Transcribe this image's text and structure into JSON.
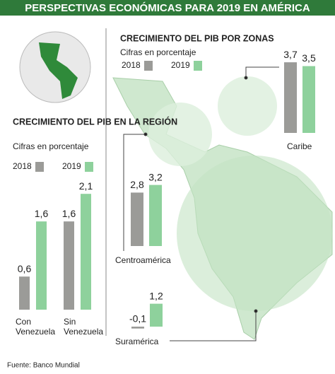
{
  "title": "PERSPECTIVAS ECONÓMICAS PARA 2019 EN AMÉRICA",
  "source": "Fuente: Banco Mundial",
  "chart_data": [
    {
      "type": "bar",
      "title": "CRECIMIENTO DEL PIB EN LA REGIÓN",
      "subtitle": "Cifras en porcentaje",
      "categories": [
        "Con Venezuela",
        "Sin Venezuela"
      ],
      "series": [
        {
          "name": "2018",
          "color": "#9b9b98",
          "values": [
            0.6,
            1.6
          ],
          "value_labels": [
            "0,6",
            "1,6"
          ]
        },
        {
          "name": "2019",
          "color": "#8ed19c",
          "values": [
            1.6,
            2.1
          ],
          "value_labels": [
            "1,6",
            "2,1"
          ]
        }
      ]
    },
    {
      "type": "bar",
      "title": "CRECIMIENTO DEL PIB POR ZONAS",
      "subtitle": "Cifras en porcentaje",
      "categories": [
        "Caribe",
        "Centroamérica",
        "Suramérica"
      ],
      "series": [
        {
          "name": "2018",
          "color": "#9b9b98",
          "values": [
            3.7,
            2.8,
            -0.1
          ],
          "value_labels": [
            "3,7",
            "2,8",
            "-0,1"
          ]
        },
        {
          "name": "2019",
          "color": "#8ed19c",
          "values": [
            3.5,
            3.2,
            1.2
          ],
          "value_labels": [
            "3,5",
            "3,2",
            "1,2"
          ]
        }
      ]
    }
  ]
}
